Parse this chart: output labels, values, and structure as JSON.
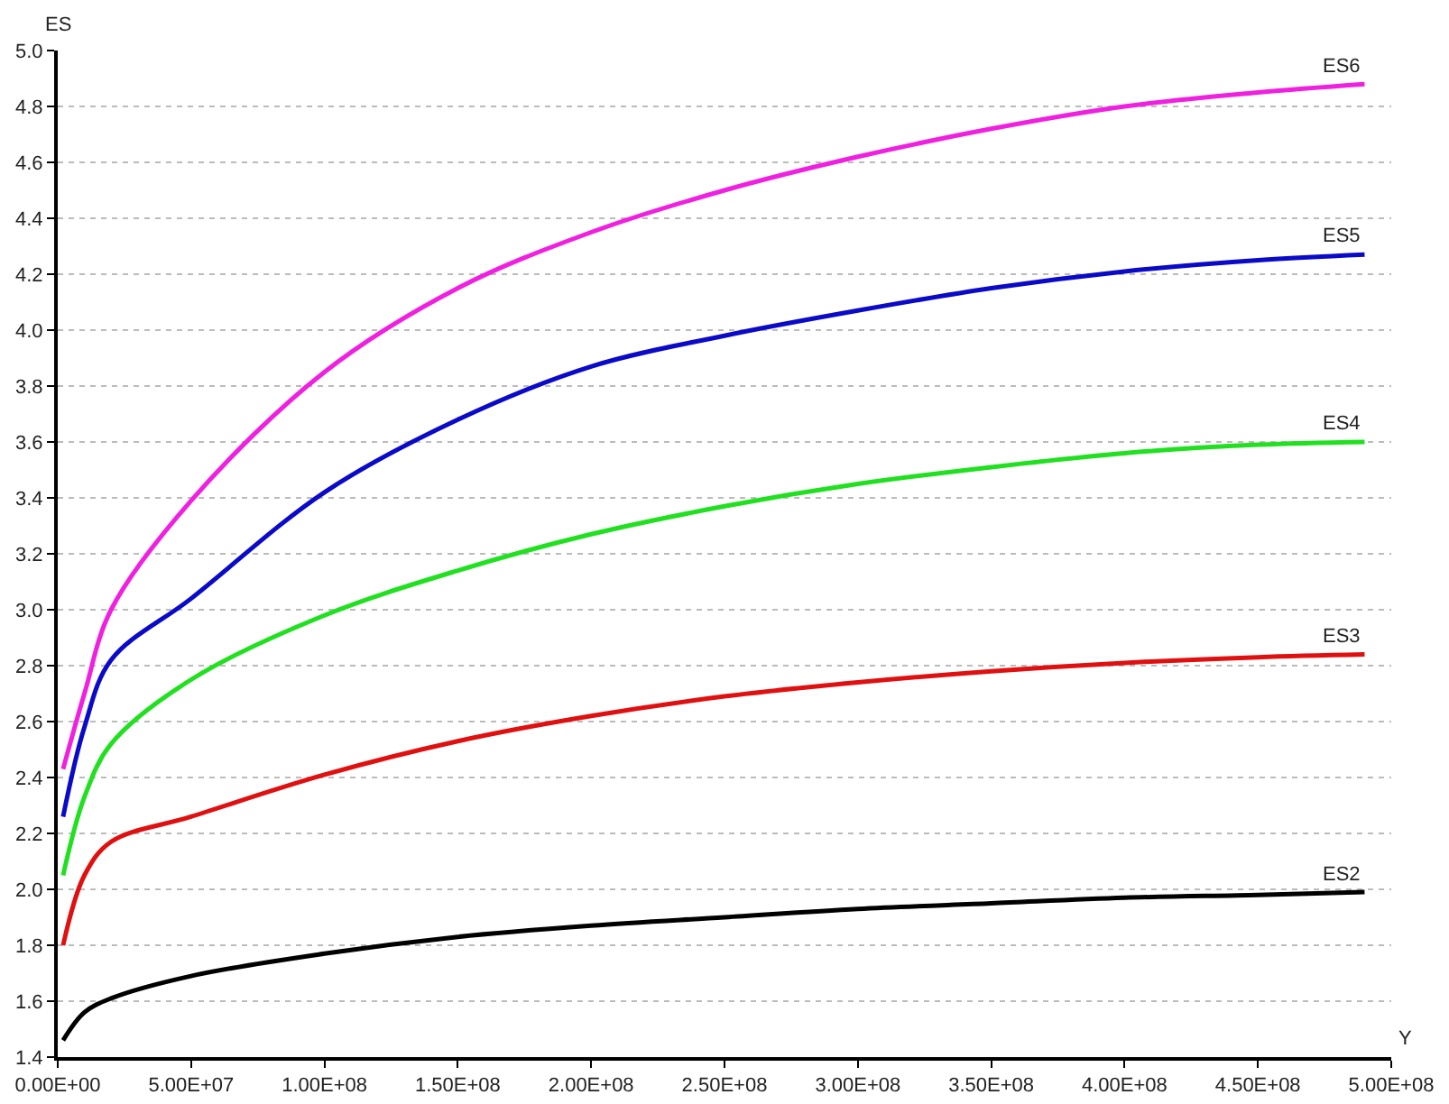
{
  "chart_data": {
    "type": "line",
    "xlabel": "Y",
    "ylabel": "ES",
    "x": [
      2000000,
      10000000,
      20000000,
      50000000,
      100000000,
      150000000,
      200000000,
      250000000,
      300000000,
      350000000,
      400000000,
      450000000,
      490000000
    ],
    "series": [
      {
        "name": "ES2",
        "color": "#000000",
        "values": [
          1.46,
          1.56,
          1.61,
          1.69,
          1.77,
          1.83,
          1.87,
          1.9,
          1.93,
          1.95,
          1.97,
          1.98,
          1.99
        ]
      },
      {
        "name": "ES3",
        "color": "#e01010",
        "values": [
          1.8,
          2.05,
          2.17,
          2.26,
          2.41,
          2.53,
          2.62,
          2.69,
          2.74,
          2.78,
          2.81,
          2.83,
          2.84
        ]
      },
      {
        "name": "ES4",
        "color": "#20e020",
        "values": [
          2.05,
          2.33,
          2.52,
          2.75,
          2.98,
          3.14,
          3.27,
          3.37,
          3.45,
          3.51,
          3.56,
          3.59,
          3.6
        ]
      },
      {
        "name": "ES5",
        "color": "#0a0ac8",
        "values": [
          2.26,
          2.58,
          2.82,
          3.04,
          3.42,
          3.68,
          3.87,
          3.98,
          4.07,
          4.15,
          4.21,
          4.25,
          4.27
        ]
      },
      {
        "name": "ES6",
        "color": "#f020e0",
        "values": [
          2.43,
          2.7,
          3.0,
          3.39,
          3.85,
          4.15,
          4.35,
          4.5,
          4.62,
          4.72,
          4.8,
          4.85,
          4.88
        ]
      }
    ],
    "xlim": [
      0,
      500000000
    ],
    "xticks": [
      {
        "value": 0,
        "label": "0.00E+00"
      },
      {
        "value": 50000000,
        "label": "5.00E+07"
      },
      {
        "value": 100000000,
        "label": "1.00E+08"
      },
      {
        "value": 150000000,
        "label": "1.50E+08"
      },
      {
        "value": 200000000,
        "label": "2.00E+08"
      },
      {
        "value": 250000000,
        "label": "2.50E+08"
      },
      {
        "value": 300000000,
        "label": "3.00E+08"
      },
      {
        "value": 350000000,
        "label": "3.50E+08"
      },
      {
        "value": 400000000,
        "label": "4.00E+08"
      },
      {
        "value": 450000000,
        "label": "4.50E+08"
      },
      {
        "value": 500000000,
        "label": "5.00E+08"
      }
    ],
    "ylim": [
      1.4,
      5.0
    ],
    "yticks": [
      1.4,
      1.6,
      1.8,
      {
        "value": 2,
        "label": "2.0"
      },
      2.2,
      2.4,
      2.6,
      2.8,
      {
        "value": 3,
        "label": "3.0"
      },
      3.2,
      3.4,
      3.6,
      3.8,
      {
        "value": 4,
        "label": "4.0"
      },
      4.2,
      4.4,
      4.6,
      4.8,
      {
        "value": 5,
        "label": "5.0"
      }
    ],
    "grid": "y",
    "legend": false,
    "marker": "none",
    "line_style": "solid"
  }
}
